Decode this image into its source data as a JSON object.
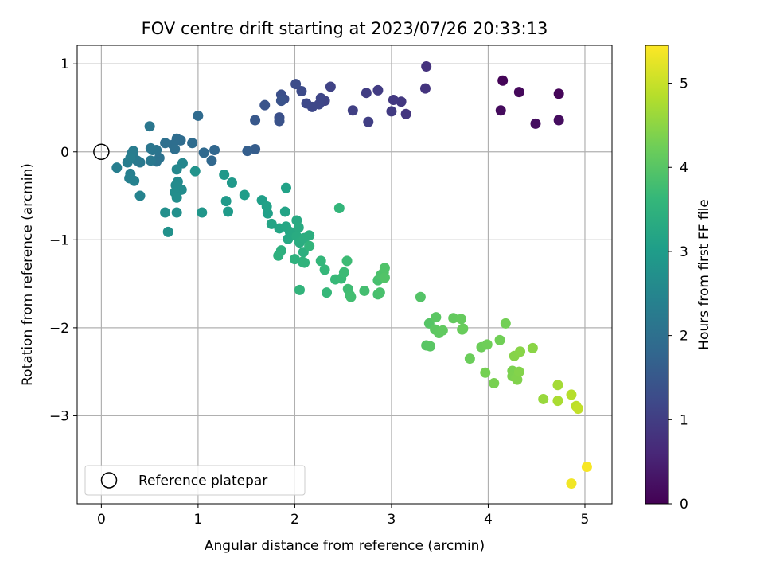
{
  "chart_data": {
    "type": "scatter",
    "title": "FOV centre drift starting at 2023/07/26 20:33:13",
    "xlabel": "Angular distance from reference (arcmin)",
    "ylabel": "Rotation from reference (arcmin)",
    "xlim": [
      -0.25,
      5.28
    ],
    "ylim": [
      -4.0,
      1.21
    ],
    "xticks": [
      0,
      1,
      2,
      3,
      4,
      5
    ],
    "xtick_labels": [
      "0",
      "1",
      "2",
      "3",
      "4",
      "5"
    ],
    "yticks": [
      1,
      0,
      -1,
      -2,
      -3
    ],
    "ytick_labels": [
      "1",
      "0",
      "−1",
      "−2",
      "−3"
    ],
    "grid": true,
    "legend": {
      "placement": "lower-left",
      "label": "Reference platepar"
    },
    "reference_point": {
      "x": 0,
      "y": 0
    },
    "colorbar": {
      "label": "Hours from first FF file",
      "colormap": "viridis",
      "range": [
        0,
        5.45
      ],
      "ticks": [
        0,
        1,
        2,
        3,
        4,
        5
      ],
      "tick_labels": [
        "0",
        "1",
        "2",
        "3",
        "4",
        "5"
      ]
    },
    "colors": [
      "#440154",
      "#482878",
      "#3e4989",
      "#31688e",
      "#26828e",
      "#1f9e89",
      "#35b779",
      "#6ece58",
      "#b5de2b",
      "#fde725"
    ],
    "points": [
      [
        4.15,
        0.81,
        0.05
      ],
      [
        4.73,
        0.66,
        0.08
      ],
      [
        4.32,
        0.68,
        0.12
      ],
      [
        4.13,
        0.47,
        0.15
      ],
      [
        4.73,
        0.36,
        0.18
      ],
      [
        4.49,
        0.32,
        0.2
      ],
      [
        3.36,
        0.97,
        0.8
      ],
      [
        3.35,
        0.72,
        0.83
      ],
      [
        3.15,
        0.43,
        0.86
      ],
      [
        3.1,
        0.57,
        0.9
      ],
      [
        3.02,
        0.59,
        0.92
      ],
      [
        3.0,
        0.46,
        0.95
      ],
      [
        2.86,
        0.7,
        0.98
      ],
      [
        2.74,
        0.67,
        1.0
      ],
      [
        2.76,
        0.34,
        1.02
      ],
      [
        2.6,
        0.47,
        1.05
      ],
      [
        2.37,
        0.74,
        1.1
      ],
      [
        2.31,
        0.58,
        1.12
      ],
      [
        2.27,
        0.61,
        1.15
      ],
      [
        2.25,
        0.54,
        1.18
      ],
      [
        2.18,
        0.51,
        1.2
      ],
      [
        2.12,
        0.55,
        1.22
      ],
      [
        2.07,
        0.69,
        1.25
      ],
      [
        2.01,
        0.77,
        1.28
      ],
      [
        1.89,
        0.6,
        1.3
      ],
      [
        1.86,
        0.65,
        1.33
      ],
      [
        1.84,
        0.39,
        1.35
      ],
      [
        1.84,
        0.35,
        1.38
      ],
      [
        1.86,
        0.58,
        1.4
      ],
      [
        1.69,
        0.53,
        1.42
      ],
      [
        1.59,
        0.36,
        1.5
      ],
      [
        1.59,
        0.03,
        1.6
      ],
      [
        1.51,
        0.01,
        1.65
      ],
      [
        1.17,
        0.02,
        1.8
      ],
      [
        1.14,
        -0.1,
        1.82
      ],
      [
        1.06,
        -0.01,
        1.85
      ],
      [
        1.0,
        0.41,
        1.88
      ],
      [
        0.94,
        0.1,
        1.9
      ],
      [
        0.82,
        0.13,
        1.92
      ],
      [
        0.78,
        0.15,
        1.94
      ],
      [
        0.74,
        0.08,
        1.96
      ],
      [
        0.76,
        0.03,
        1.98
      ],
      [
        0.66,
        0.1,
        2.0
      ],
      [
        0.6,
        -0.07,
        2.05
      ],
      [
        0.57,
        -0.11,
        2.08
      ],
      [
        0.57,
        0.02,
        2.1
      ],
      [
        0.53,
        0.02,
        2.12
      ],
      [
        0.51,
        0.04,
        2.14
      ],
      [
        0.5,
        0.29,
        2.16
      ],
      [
        0.51,
        -0.1,
        2.18
      ],
      [
        0.4,
        -0.12,
        2.2
      ],
      [
        0.37,
        -0.1,
        2.22
      ],
      [
        0.33,
        -0.05,
        2.24
      ],
      [
        0.32,
        -0.01,
        2.26
      ],
      [
        0.33,
        0.01,
        2.28
      ],
      [
        0.27,
        -0.12,
        2.3
      ],
      [
        0.3,
        -0.07,
        2.32
      ],
      [
        0.16,
        -0.18,
        2.34
      ],
      [
        0.3,
        -0.25,
        2.36
      ],
      [
        0.29,
        -0.3,
        2.38
      ],
      [
        0.34,
        -0.33,
        2.4
      ],
      [
        0.4,
        -0.5,
        2.45
      ],
      [
        0.84,
        -0.13,
        2.5
      ],
      [
        0.78,
        -0.2,
        2.55
      ],
      [
        0.79,
        -0.34,
        2.6
      ],
      [
        0.77,
        -0.38,
        2.62
      ],
      [
        0.83,
        -0.43,
        2.64
      ],
      [
        0.76,
        -0.46,
        2.66
      ],
      [
        0.78,
        -0.52,
        2.68
      ],
      [
        0.66,
        -0.69,
        2.7
      ],
      [
        0.78,
        -0.69,
        2.72
      ],
      [
        0.69,
        -0.91,
        2.74
      ],
      [
        0.97,
        -0.22,
        2.8
      ],
      [
        1.04,
        -0.69,
        2.85
      ],
      [
        1.27,
        -0.26,
        2.9
      ],
      [
        1.35,
        -0.35,
        2.92
      ],
      [
        1.29,
        -0.56,
        2.94
      ],
      [
        1.31,
        -0.68,
        2.96
      ],
      [
        1.48,
        -0.49,
        3.0
      ],
      [
        1.66,
        -0.55,
        3.05
      ],
      [
        1.72,
        -0.7,
        3.08
      ],
      [
        1.71,
        -0.62,
        3.1
      ],
      [
        1.91,
        -0.41,
        3.12
      ],
      [
        1.9,
        -0.68,
        3.14
      ],
      [
        1.76,
        -0.82,
        3.18
      ],
      [
        1.84,
        -0.87,
        3.2
      ],
      [
        1.91,
        -0.85,
        3.22
      ],
      [
        1.95,
        -0.91,
        3.24
      ],
      [
        1.93,
        -0.99,
        3.26
      ],
      [
        1.99,
        -0.92,
        3.28
      ],
      [
        2.02,
        -0.78,
        3.3
      ],
      [
        2.04,
        -0.86,
        3.32
      ],
      [
        2.02,
        -0.96,
        3.34
      ],
      [
        2.05,
        -1.03,
        3.36
      ],
      [
        2.1,
        -0.98,
        3.38
      ],
      [
        2.15,
        -0.95,
        3.4
      ],
      [
        2.09,
        -1.14,
        3.42
      ],
      [
        1.86,
        -1.12,
        3.44
      ],
      [
        1.83,
        -1.18,
        3.46
      ],
      [
        2.0,
        -1.22,
        3.48
      ],
      [
        2.08,
        -1.25,
        3.5
      ],
      [
        2.1,
        -1.26,
        3.52
      ],
      [
        2.05,
        -1.57,
        3.54
      ],
      [
        2.15,
        -1.07,
        3.56
      ],
      [
        2.46,
        -0.64,
        3.58
      ],
      [
        2.27,
        -1.24,
        3.6
      ],
      [
        2.31,
        -1.34,
        3.62
      ],
      [
        2.33,
        -1.6,
        3.64
      ],
      [
        2.42,
        -1.45,
        3.66
      ],
      [
        2.48,
        -1.44,
        3.68
      ],
      [
        2.51,
        -1.37,
        3.7
      ],
      [
        2.54,
        -1.24,
        3.72
      ],
      [
        2.55,
        -1.56,
        3.74
      ],
      [
        2.57,
        -1.63,
        3.76
      ],
      [
        2.58,
        -1.65,
        3.78
      ],
      [
        2.72,
        -1.58,
        3.8
      ],
      [
        2.86,
        -1.62,
        3.82
      ],
      [
        2.86,
        -1.46,
        3.84
      ],
      [
        2.88,
        -1.6,
        3.86
      ],
      [
        2.89,
        -1.4,
        3.88
      ],
      [
        2.92,
        -1.37,
        3.9
      ],
      [
        2.93,
        -1.32,
        3.92
      ],
      [
        2.93,
        -1.43,
        3.94
      ],
      [
        3.3,
        -1.65,
        3.96
      ],
      [
        3.39,
        -1.95,
        3.98
      ],
      [
        3.36,
        -2.2,
        4.0
      ],
      [
        3.4,
        -2.21,
        4.02
      ],
      [
        3.46,
        -1.88,
        4.04
      ],
      [
        3.45,
        -2.02,
        4.06
      ],
      [
        3.49,
        -2.06,
        4.08
      ],
      [
        3.53,
        -2.03,
        4.1
      ],
      [
        3.64,
        -1.89,
        4.12
      ],
      [
        3.72,
        -1.9,
        4.14
      ],
      [
        3.74,
        -2.01,
        4.16
      ],
      [
        3.73,
        -2.02,
        4.18
      ],
      [
        3.81,
        -2.35,
        4.2
      ],
      [
        3.93,
        -2.22,
        4.22
      ],
      [
        3.99,
        -2.19,
        4.24
      ],
      [
        4.12,
        -2.14,
        4.26
      ],
      [
        4.18,
        -1.95,
        4.28
      ],
      [
        3.97,
        -2.51,
        4.3
      ],
      [
        4.06,
        -2.63,
        4.32
      ],
      [
        4.25,
        -2.49,
        4.34
      ],
      [
        4.25,
        -2.55,
        4.36
      ],
      [
        4.29,
        -2.57,
        4.38
      ],
      [
        4.3,
        -2.59,
        4.4
      ],
      [
        4.32,
        -2.5,
        4.42
      ],
      [
        4.27,
        -2.32,
        4.44
      ],
      [
        4.33,
        -2.27,
        4.46
      ],
      [
        4.46,
        -2.23,
        4.48
      ],
      [
        4.57,
        -2.81,
        4.6
      ],
      [
        4.72,
        -2.65,
        4.7
      ],
      [
        4.72,
        -2.83,
        4.75
      ],
      [
        4.86,
        -2.76,
        4.85
      ],
      [
        4.91,
        -2.89,
        4.9
      ],
      [
        4.93,
        -2.92,
        4.95
      ],
      [
        4.86,
        -3.77,
        5.35
      ],
      [
        5.02,
        -3.58,
        5.4
      ]
    ]
  }
}
